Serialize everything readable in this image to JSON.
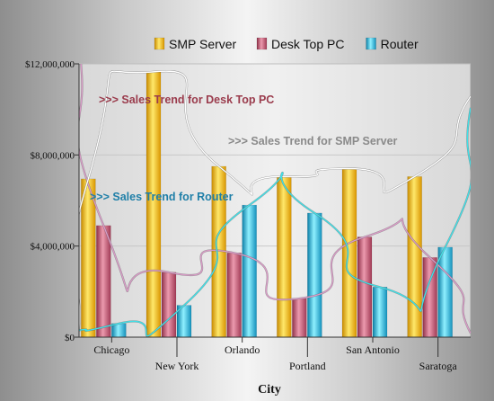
{
  "chart_data": {
    "type": "bar",
    "xlabel": "City",
    "ylabel": "",
    "ylim": [
      0,
      12000000
    ],
    "y_ticks": [
      {
        "value": 0,
        "label": "$0"
      },
      {
        "value": 4000000,
        "label": "$4,000,000"
      },
      {
        "value": 8000000,
        "label": "$8,000,000"
      },
      {
        "value": 12000000,
        "label": "$12,000,000"
      }
    ],
    "categories": [
      "Chicago",
      "New York",
      "Orlando",
      "Portland",
      "San Antonio",
      "Saratoga"
    ],
    "series": [
      {
        "name": "SMP Server",
        "color": "#f0b400",
        "values": [
          6950000,
          11650000,
          7500000,
          7050000,
          7400000,
          7050000
        ]
      },
      {
        "name": "Desk Top PC",
        "color": "#c0506a",
        "values": [
          4900000,
          2850000,
          3700000,
          1700000,
          4400000,
          3500000
        ]
      },
      {
        "name": "Router",
        "color": "#1aa8d0",
        "values": [
          600000,
          1400000,
          5800000,
          5450000,
          2200000,
          3950000
        ]
      }
    ],
    "trend_lines": [
      {
        "series": "Desk Top PC",
        "label": ">>> Sales Trend for Desk Top PC",
        "color": "#9a3b4c",
        "line_color": "#d89ac6"
      },
      {
        "series": "SMP Server",
        "label": ">>> Sales Trend for SMP Server",
        "color": "#8a8a8a",
        "line_color": "#ffffff"
      },
      {
        "series": "Router",
        "label": ">>>  Sales Trend for Router",
        "color": "#1f7fa8",
        "line_color": "#40e0e8"
      }
    ],
    "legend_position": "top",
    "grid": true
  }
}
